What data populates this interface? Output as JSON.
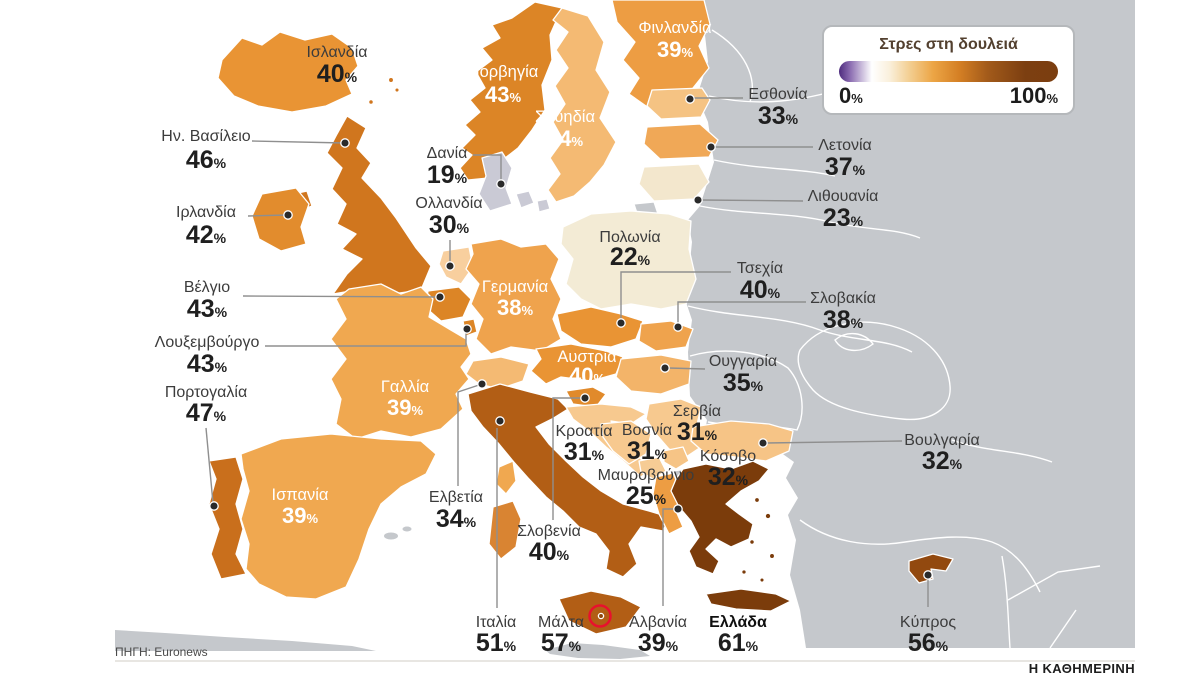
{
  "legend": {
    "title": "Στρες στη δουλειά",
    "title_color": "#53402F",
    "min": "0",
    "max": "100",
    "unit": "%",
    "gradient": [
      {
        "c": "#4E2B7E",
        "p": 0
      },
      {
        "c": "#8A6BB0",
        "p": 5
      },
      {
        "c": "#FFFFFF",
        "p": 15
      },
      {
        "c": "#FAF0DC",
        "p": 23
      },
      {
        "c": "#F3CF93",
        "p": 32
      },
      {
        "c": "#ECA545",
        "p": 43
      },
      {
        "c": "#D47F24",
        "p": 55
      },
      {
        "c": "#A25A1A",
        "p": 68
      },
      {
        "c": "#7C3F11",
        "p": 85
      },
      {
        "c": "#7B3E10",
        "p": 100
      }
    ]
  },
  "footer": {
    "source": "ΠΗΓΗ: Euronews",
    "brand": "Η ΚΑΘΗΜΕΡΙΝΗ"
  },
  "map": {
    "sea_color": "#FFFFFF",
    "no_data_color": "#C5C8CC",
    "border_color": "#FFFFFF",
    "leader_color": "#8F8F8F",
    "dot_color": "#2A2A2A",
    "malta_highlight_color": "#E8112D"
  },
  "chart_data": {
    "type": "choropleth",
    "title": "Στρες στη δουλειά",
    "unit": "%",
    "scale": {
      "min": 0,
      "max": 100,
      "legend_position": "top-right"
    },
    "countries": [
      {
        "id": "iceland",
        "name": "Ισλανδία",
        "value": 40,
        "color": "#E99434"
      },
      {
        "id": "norway",
        "name": "Νορβηγία",
        "value": 43,
        "color": "#DC8526"
      },
      {
        "id": "sweden",
        "name": "Σουηδία",
        "value": 34,
        "color": "#F4BA73"
      },
      {
        "id": "finland",
        "name": "Φινλανδία",
        "value": 39,
        "color": "#ED9D43"
      },
      {
        "id": "denmark",
        "name": "Δανία",
        "value": 19,
        "color": "#CACAD5"
      },
      {
        "id": "estonia",
        "name": "Εσθονία",
        "value": 33,
        "color": "#F5C383"
      },
      {
        "id": "latvia",
        "name": "Λετονία",
        "value": 37,
        "color": "#F0A857"
      },
      {
        "id": "lithuania",
        "name": "Λιθουανία",
        "value": 23,
        "color": "#F3E7CD"
      },
      {
        "id": "uk",
        "name": "Ην. Βασίλειο",
        "value": 46,
        "color": "#D0761E"
      },
      {
        "id": "ireland",
        "name": "Ιρλανδία",
        "value": 42,
        "color": "#E28C2D"
      },
      {
        "id": "netherlands",
        "name": "Ολλανδία",
        "value": 30,
        "color": "#F8CF9E"
      },
      {
        "id": "belgium",
        "name": "Βέλγιο",
        "value": 43,
        "color": "#DC8526"
      },
      {
        "id": "luxembourg",
        "name": "Λουξεμβούργο",
        "value": 43,
        "color": "#DC8526"
      },
      {
        "id": "germany",
        "name": "Γερμανία",
        "value": 38,
        "color": "#EFA34D"
      },
      {
        "id": "poland",
        "name": "Πολωνία",
        "value": 22,
        "color": "#F3EBD5"
      },
      {
        "id": "czechia",
        "name": "Τσεχία",
        "value": 40,
        "color": "#E99434"
      },
      {
        "id": "slovakia",
        "name": "Σλοβακία",
        "value": 38,
        "color": "#EFA34D"
      },
      {
        "id": "austria",
        "name": "Αυστρία",
        "value": 40,
        "color": "#E99434"
      },
      {
        "id": "hungary",
        "name": "Ουγγαρία",
        "value": 35,
        "color": "#F3B469"
      },
      {
        "id": "switzerland",
        "name": "Ελβετία",
        "value": 34,
        "color": "#F4BA73"
      },
      {
        "id": "france",
        "name": "Γαλλία",
        "value": 39,
        "color": "#F0A850"
      },
      {
        "id": "portugal",
        "name": "Πορτογαλία",
        "value": 47,
        "color": "#C96F1C"
      },
      {
        "id": "spain",
        "name": "Ισπανία",
        "value": 39,
        "color": "#F0A850"
      },
      {
        "id": "italy",
        "name": "Ιταλία",
        "value": 51,
        "color": "#B25E15"
      },
      {
        "id": "slovenia",
        "name": "Σλοβενία",
        "value": 40,
        "color": "#E18A2B"
      },
      {
        "id": "croatia",
        "name": "Κροατία",
        "value": 31,
        "color": "#F7C98F"
      },
      {
        "id": "bosnia",
        "name": "Βοσνία",
        "value": 31,
        "color": "#F7C98F"
      },
      {
        "id": "serbia",
        "name": "Σερβία",
        "value": 31,
        "color": "#F7C98F"
      },
      {
        "id": "montenegro",
        "name": "Μαυροβούνιο",
        "value": 25,
        "color": "#F6CC95"
      },
      {
        "id": "kosovo",
        "name": "Κόσοβο",
        "value": 32,
        "color": "#F6C486"
      },
      {
        "id": "albania",
        "name": "Αλβανία",
        "value": 39,
        "color": "#ED9D43"
      },
      {
        "id": "greece",
        "name": "Ελλάδα",
        "value": 61,
        "color": "#7B3C0B"
      },
      {
        "id": "malta",
        "name": "Μάλτα",
        "value": 57,
        "color": "#8F470E"
      },
      {
        "id": "bulgaria",
        "name": "Βουλγαρία",
        "value": 32,
        "color": "#F6C486"
      },
      {
        "id": "cyprus",
        "name": "Κύπρος",
        "value": 56,
        "color": "#92490F"
      }
    ]
  }
}
